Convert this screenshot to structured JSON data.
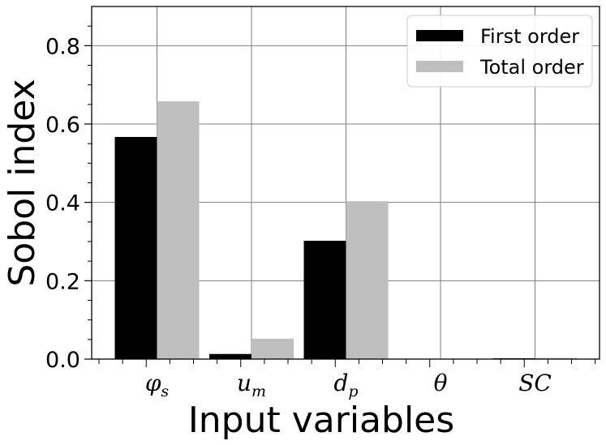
{
  "chart_data": {
    "type": "bar",
    "categories": [
      "φs",
      "um",
      "dp",
      "θ",
      "SC"
    ],
    "category_display": [
      {
        "base": "φ",
        "sub": "s"
      },
      {
        "base": "u",
        "sub": "m"
      },
      {
        "base": "d",
        "sub": "p"
      },
      {
        "base": "θ",
        "sub": ""
      },
      {
        "base": "SC",
        "sub": ""
      }
    ],
    "series": [
      {
        "name": "First order",
        "color": "#000000",
        "values": [
          0.567,
          0.013,
          0.302,
          0.001,
          0.002
        ]
      },
      {
        "name": "Total order",
        "color": "#bfbfbf",
        "values": [
          0.658,
          0.052,
          0.403,
          0.001,
          0.003
        ]
      }
    ],
    "xlabel": "Input variables",
    "ylabel": "Sobol index",
    "ylim": [
      0,
      0.9
    ],
    "yticks": [
      "0.0",
      "0.2",
      "0.4",
      "0.6",
      "0.8"
    ],
    "grid": true,
    "legend_position": "top-right"
  }
}
